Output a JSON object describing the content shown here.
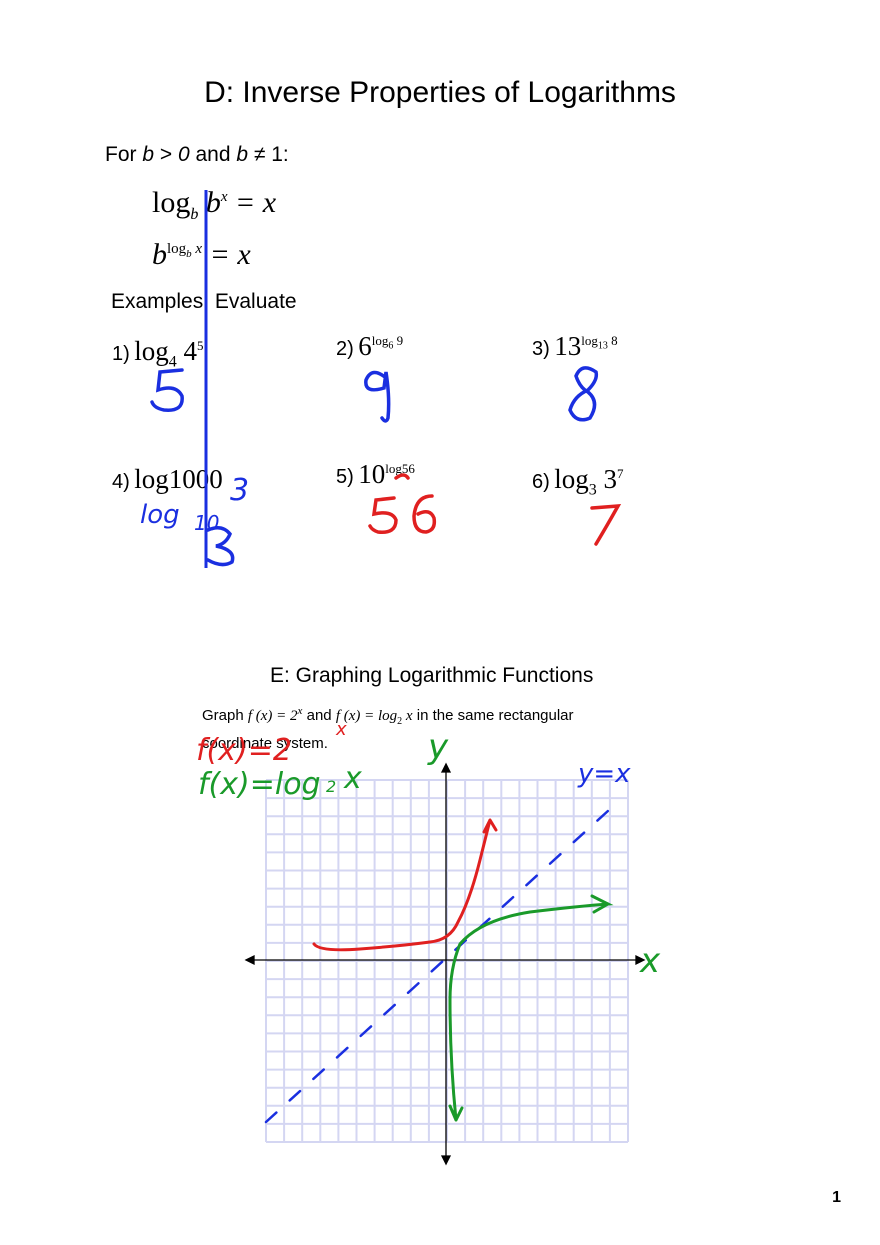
{
  "section_d": {
    "title": "D: Inverse Properties of Logarithms",
    "condition": {
      "prefix": "For ",
      "var1": "b",
      "gt": " > ",
      "zero": "0",
      "and": " and ",
      "var2": "b",
      "neq": " ≠ 1:"
    },
    "property1": {
      "log": "log",
      "base": "b",
      "b": "b",
      "exp": "x",
      "eq": " = x"
    },
    "property2": {
      "b": "b",
      "exp_log": "log",
      "exp_base": "b",
      "exp_x": "x",
      "eq": " = x"
    },
    "examples_title": "Examples: Evaluate",
    "examples": [
      {
        "label": "1)",
        "main": "log",
        "sub": "4",
        "base": " 4",
        "sup": "5",
        "answer": "5"
      },
      {
        "label": "2)",
        "main": "6",
        "sup_log": "log",
        "sup_base": "6",
        "sup_val": " 9",
        "answer": "9"
      },
      {
        "label": "3)",
        "main": "13",
        "sup_log": "log",
        "sup_base": "13",
        "sup_val": " 8",
        "answer": "8"
      },
      {
        "label": "4)",
        "main": "log1000",
        "answer": "log₁₀10³ = 3"
      },
      {
        "label": "5)",
        "main": "10",
        "sup_val": "log56",
        "answer": "56"
      },
      {
        "label": "6)",
        "main": "log",
        "sub": "3",
        "base": " 3",
        "sup": "7",
        "answer": "7"
      }
    ],
    "handwriting": {
      "ex4_work_a": "log",
      "ex4_work_b": "10",
      "ex4_work_c": "3"
    }
  },
  "section_e": {
    "title": "E: Graphing Logarithmic Functions",
    "instruction": {
      "graph": "Graph ",
      "f1": "f (x) = 2",
      "f1_exp": "x",
      "and": " and ",
      "f2": "f (x) = log",
      "f2_sub": "2",
      "f2_x": " x",
      "rest": " in the same rectangular coordinate system."
    },
    "handwriting": {
      "f1_label": "f(x)=2",
      "f1_exp": "x",
      "f2_label": "f(x)=log",
      "f2_sub": "2",
      "f2_x": "x",
      "y_axis": "y",
      "x_axis": "x",
      "line_label": "y=x"
    }
  },
  "page_number": "1",
  "colors": {
    "blue_ink": "#1a2fe0",
    "red_ink": "#e02020",
    "green_ink": "#1a9a2a",
    "grid": "#d4d6f2"
  }
}
